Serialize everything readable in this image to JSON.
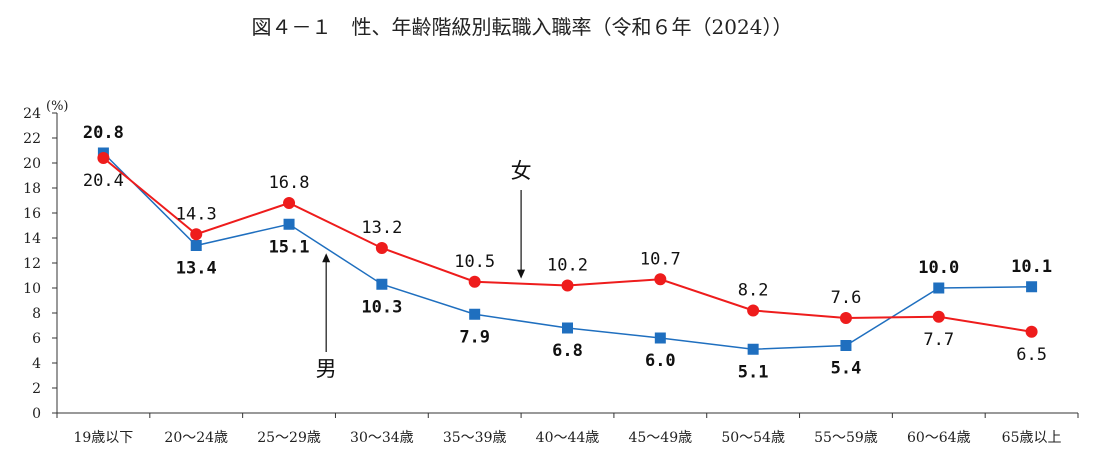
{
  "chart_data": {
    "type": "line",
    "title": "図４－１　性、年齢階級別転職入職率（令和６年（2024））",
    "ylabel": "(%)",
    "ylim": [
      0,
      24
    ],
    "yticks": [
      "0",
      "2",
      "4",
      "6",
      "8",
      "10",
      "12",
      "14",
      "16",
      "18",
      "20",
      "22",
      "24"
    ],
    "categories": [
      "19歳以下",
      "20～24歳",
      "25～29歳",
      "30～34歳",
      "35～39歳",
      "40～44歳",
      "45～49歳",
      "50～54歳",
      "55～59歳",
      "60～64歳",
      "65歳以上"
    ],
    "series": [
      {
        "name": "男",
        "color": "#1f6fbf",
        "marker": "square",
        "values": [
          20.8,
          13.4,
          15.1,
          10.3,
          7.9,
          6.8,
          6.0,
          5.1,
          5.4,
          10.0,
          10.1
        ],
        "labels": [
          "20.8",
          "13.4",
          "15.1",
          "10.3",
          "7.9",
          "6.8",
          "6.0",
          "5.1",
          "5.4",
          "10.0",
          "10.1"
        ]
      },
      {
        "name": "女",
        "color": "#ee1c1c",
        "marker": "circle",
        "values": [
          20.4,
          14.3,
          16.8,
          13.2,
          10.5,
          10.2,
          10.7,
          8.2,
          7.6,
          7.7,
          6.5
        ],
        "labels": [
          "20.4",
          "14.3",
          "16.8",
          "13.2",
          "10.5",
          "10.2",
          "10.7",
          "8.2",
          "7.6",
          "7.7",
          "6.5"
        ]
      }
    ],
    "annotations": [
      {
        "text": "女",
        "series": "女",
        "category_index": 4.5
      },
      {
        "text": "男",
        "series": "男",
        "category_index": 2.4
      }
    ]
  }
}
